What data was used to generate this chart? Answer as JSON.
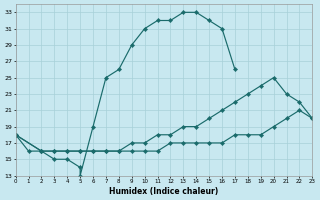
{
  "background_color": "#c8e8f0",
  "grid_color": "#a8d0d8",
  "line_color": "#1a6b6b",
  "xlabel": "Humidex (Indice chaleur)",
  "xlim": [
    0,
    23
  ],
  "ylim": [
    13,
    34
  ],
  "xtick_vals": [
    0,
    1,
    2,
    3,
    4,
    5,
    6,
    7,
    8,
    9,
    10,
    11,
    12,
    13,
    14,
    15,
    16,
    17,
    18,
    19,
    20,
    21,
    22,
    23
  ],
  "ytick_vals": [
    13,
    15,
    17,
    19,
    21,
    23,
    25,
    27,
    29,
    31,
    33
  ],
  "line1_x": [
    0,
    1,
    2,
    3,
    4,
    5,
    5,
    6,
    7,
    8,
    9,
    10,
    11,
    12,
    13,
    14,
    15,
    16,
    17
  ],
  "line1_y": [
    18,
    16,
    16,
    15,
    15,
    14,
    13,
    19,
    25,
    26,
    29,
    31,
    32,
    32,
    33,
    33,
    32,
    31,
    26
  ],
  "line2_x": [
    0,
    2,
    3,
    4,
    5,
    6,
    7,
    8,
    9,
    10,
    11,
    12,
    13,
    14,
    15,
    16,
    17,
    18,
    19,
    20,
    21,
    22,
    23
  ],
  "line2_y": [
    18,
    16,
    16,
    16,
    16,
    16,
    16,
    16,
    17,
    17,
    18,
    18,
    19,
    19,
    20,
    21,
    22,
    23,
    24,
    25,
    23,
    22,
    20
  ],
  "line3_x": [
    0,
    2,
    3,
    4,
    5,
    6,
    7,
    8,
    9,
    10,
    11,
    12,
    13,
    14,
    15,
    16,
    17,
    18,
    19,
    20,
    21,
    22,
    23
  ],
  "line3_y": [
    18,
    16,
    16,
    16,
    16,
    16,
    16,
    16,
    16,
    16,
    16,
    17,
    17,
    17,
    17,
    17,
    18,
    18,
    18,
    19,
    20,
    21,
    20
  ]
}
